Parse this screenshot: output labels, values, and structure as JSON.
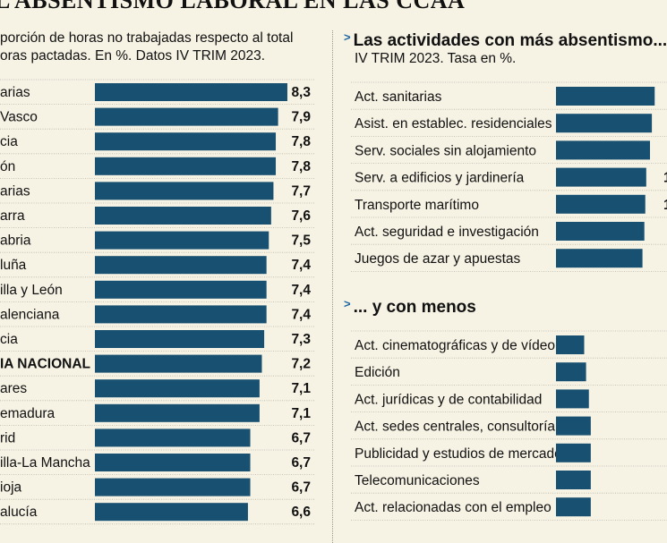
{
  "title": "L ABSENTISMO LABORAL EN LAS CCAA",
  "subtitle": "porción de horas no trabajadas respecto al total\noras pactadas. En %. Datos IV TRIM 2023.",
  "chart_data": [
    {
      "type": "bar",
      "orientation": "horizontal",
      "title": "L ABSENTISMO LABORAL EN LAS CCAA",
      "subtitle": "porción de horas no trabajadas respecto al total oras pactadas. En %. Datos IV TRIM 2023.",
      "categories": [
        "arias",
        "Vasco",
        "cia",
        "ón",
        "arias",
        "arra",
        "abria",
        "luña",
        "illa y León",
        "alenciana",
        "cia",
        "IA NACIONAL",
        "ares",
        "emadura",
        "rid",
        "illa-La Mancha",
        "ioja",
        "alucía"
      ],
      "values": [
        8.3,
        7.9,
        7.8,
        7.8,
        7.7,
        7.6,
        7.5,
        7.4,
        7.4,
        7.4,
        7.3,
        7.2,
        7.1,
        7.1,
        6.7,
        6.7,
        6.7,
        6.6
      ],
      "value_labels": [
        "8,3",
        "7,9",
        "7,8",
        "7,8",
        "7,7",
        "7,6",
        "7,5",
        "7,4",
        "7,4",
        "7,4",
        "7,3",
        "7,2",
        "7,1",
        "7,1",
        "6,7",
        "6,7",
        "6,7",
        "6,6"
      ],
      "highlight_category": "IA NACIONAL",
      "bar_color": "#175070"
    },
    {
      "type": "bar",
      "orientation": "horizontal",
      "title": "Las actividades con más absentismo...",
      "subtitle": "IV TRIM 2023. Tasa en %.",
      "categories": [
        "Act. sanitarias",
        "Asist. en establec. residenciales",
        "Serv. sociales sin alojamiento",
        "Serv. a edificios y jardinería",
        "Transporte marítimo",
        "Act. seguridad e investigación",
        "Juegos de azar y apuestas"
      ],
      "values": [
        10.5,
        10.2,
        10.0,
        9.6,
        9.5,
        9.4,
        9.2
      ],
      "value_labels": [
        "",
        "",
        "",
        "1",
        "1",
        "",
        ""
      ],
      "bar_color": "#175070"
    },
    {
      "type": "bar",
      "orientation": "horizontal",
      "title": "... y con menos",
      "categories": [
        "Act. cinematográficas y de vídeo",
        "Edición",
        "Act. jurídicas y de contabilidad",
        "Act. sedes centrales, consultoría...",
        "Publicidad y estudios de mercado",
        "Telecomunicaciones",
        "Act. relacionadas con el empleo"
      ],
      "values": [
        3.0,
        3.2,
        3.5,
        3.7,
        3.7,
        3.7,
        3.7
      ],
      "bar_color": "#175070"
    }
  ]
}
